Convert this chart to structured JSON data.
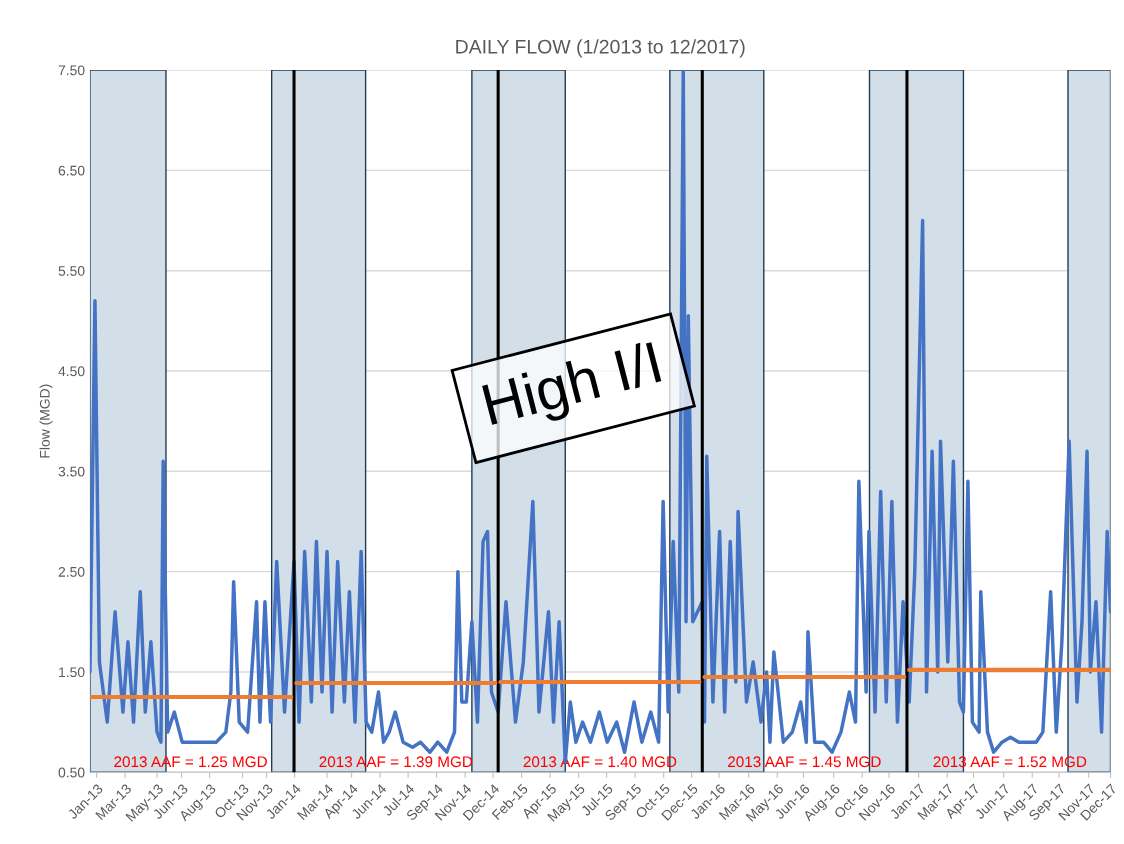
{
  "chart_data": {
    "type": "line",
    "title": "DAILY FLOW (1/2013 to 12/2017)",
    "ylabel": "Flow (MGD)",
    "xlim": [
      "2013-01-01",
      "2017-12-31"
    ],
    "ylim": [
      0.5,
      7.5
    ],
    "yticks": [
      {
        "value": 0.5,
        "label": "0.50"
      },
      {
        "value": 1.5,
        "label": "1.50"
      },
      {
        "value": 2.5,
        "label": "2.50"
      },
      {
        "value": 3.5,
        "label": "3.50"
      },
      {
        "value": 4.5,
        "label": "4.50"
      },
      {
        "value": 5.5,
        "label": "5.50"
      },
      {
        "value": 6.5,
        "label": "6.50"
      },
      {
        "value": 7.5,
        "label": "7.50"
      }
    ],
    "xticks": [
      {
        "value": "2013-01-13",
        "label": "Jan-13"
      },
      {
        "value": "2013-03-05",
        "label": "Mar-13"
      },
      {
        "value": "2013-05-01",
        "label": "May-13"
      },
      {
        "value": "2013-06-14",
        "label": "Jun-13"
      },
      {
        "value": "2013-08-03",
        "label": "Aug-13"
      },
      {
        "value": "2013-10-01",
        "label": "Oct-13"
      },
      {
        "value": "2013-11-13",
        "label": "Nov-13"
      },
      {
        "value": "2014-01-02",
        "label": "Jan-14"
      },
      {
        "value": "2014-03-01",
        "label": "Mar-14"
      },
      {
        "value": "2014-04-14",
        "label": "Apr-14"
      },
      {
        "value": "2014-06-04",
        "label": "Jun-14"
      },
      {
        "value": "2014-07-24",
        "label": "Jul-14"
      },
      {
        "value": "2014-09-13",
        "label": "Sep-14"
      },
      {
        "value": "2014-11-03",
        "label": "Nov-14"
      },
      {
        "value": "2014-12-23",
        "label": "Dec-14"
      },
      {
        "value": "2015-02-12",
        "label": "Feb-15"
      },
      {
        "value": "2015-04-04",
        "label": "Apr-15"
      },
      {
        "value": "2015-05-25",
        "label": "May-15"
      },
      {
        "value": "2015-07-14",
        "label": "Jul-15"
      },
      {
        "value": "2015-09-03",
        "label": "Sep-15"
      },
      {
        "value": "2015-10-24",
        "label": "Oct-15"
      },
      {
        "value": "2015-12-13",
        "label": "Dec-15"
      },
      {
        "value": "2016-01-31",
        "label": "Jan-16"
      },
      {
        "value": "2016-03-24",
        "label": "Mar-16"
      },
      {
        "value": "2016-05-14",
        "label": "May-16"
      },
      {
        "value": "2016-06-30",
        "label": "Jun-16"
      },
      {
        "value": "2016-08-23",
        "label": "Aug-16"
      },
      {
        "value": "2016-10-13",
        "label": "Oct-16"
      },
      {
        "value": "2016-11-30",
        "label": "Nov-16"
      },
      {
        "value": "2017-01-22",
        "label": "Jan-17"
      },
      {
        "value": "2017-03-14",
        "label": "Mar-17"
      },
      {
        "value": "2017-04-30",
        "label": "Apr-17"
      },
      {
        "value": "2017-06-23",
        "label": "Jun-17"
      },
      {
        "value": "2017-08-13",
        "label": "Aug-17"
      },
      {
        "value": "2017-09-30",
        "label": "Sep-17"
      },
      {
        "value": "2017-11-22",
        "label": "Nov-17"
      },
      {
        "value": "2017-12-31",
        "label": "Dec-17"
      }
    ],
    "grid": "y",
    "legend": false,
    "marker": "none",
    "line_style": "solid",
    "bands": [
      {
        "axis": "x",
        "from": "2013-01-01",
        "to": "2013-05-17",
        "color": "#d3dfe8"
      },
      {
        "axis": "x",
        "from": "2013-11-22",
        "to": "2014-05-09",
        "color": "#d3dfe8"
      },
      {
        "axis": "x",
        "from": "2014-11-15",
        "to": "2015-05-01",
        "color": "#d3dfe8"
      },
      {
        "axis": "x",
        "from": "2015-11-04",
        "to": "2016-04-20",
        "color": "#d3dfe8"
      },
      {
        "axis": "x",
        "from": "2016-10-26",
        "to": "2017-04-12",
        "color": "#d3dfe8"
      },
      {
        "axis": "x",
        "from": "2017-10-16",
        "to": "2017-12-31",
        "color": "#d3dfe8"
      }
    ],
    "ref_lines": [
      {
        "axis": "x",
        "value": "2014-01-01",
        "color": "#000000"
      },
      {
        "axis": "x",
        "value": "2015-01-01",
        "color": "#000000"
      },
      {
        "axis": "x",
        "value": "2016-01-01",
        "color": "#000000"
      },
      {
        "axis": "x",
        "value": "2017-01-01",
        "color": "#000000"
      }
    ],
    "series": [
      {
        "color": "#4472c4",
        "x": [
          "2013-01-01",
          "2013-01-10",
          "2013-01-18",
          "2013-02-01",
          "2013-02-15",
          "2013-03-01",
          "2013-03-10",
          "2013-03-20",
          "2013-04-01",
          "2013-04-10",
          "2013-04-20",
          "2013-05-01",
          "2013-05-08",
          "2013-05-12",
          "2013-05-20",
          "2013-06-01",
          "2013-06-15",
          "2013-07-01",
          "2013-07-15",
          "2013-08-01",
          "2013-08-15",
          "2013-09-01",
          "2013-09-10",
          "2013-09-15",
          "2013-09-25",
          "2013-10-10",
          "2013-10-26",
          "2013-11-01",
          "2013-11-10",
          "2013-11-20",
          "2013-12-01",
          "2013-12-15",
          "2014-01-01",
          "2014-01-10",
          "2014-01-20",
          "2014-02-01",
          "2014-02-10",
          "2014-02-20",
          "2014-03-01",
          "2014-03-10",
          "2014-03-20",
          "2014-04-01",
          "2014-04-10",
          "2014-04-20",
          "2014-05-01",
          "2014-05-10",
          "2014-05-20",
          "2014-06-01",
          "2014-06-10",
          "2014-06-20",
          "2014-07-01",
          "2014-07-15",
          "2014-08-01",
          "2014-08-15",
          "2014-09-01",
          "2014-09-15",
          "2014-10-01",
          "2014-10-15",
          "2014-10-21",
          "2014-10-28",
          "2014-11-05",
          "2014-11-15",
          "2014-11-25",
          "2014-12-05",
          "2014-12-13",
          "2014-12-20",
          "2015-01-01",
          "2015-01-15",
          "2015-02-01",
          "2015-02-15",
          "2015-03-04",
          "2015-03-15",
          "2015-04-01",
          "2015-04-10",
          "2015-04-20",
          "2015-05-01",
          "2015-05-10",
          "2015-05-20",
          "2015-06-01",
          "2015-06-15",
          "2015-07-01",
          "2015-07-15",
          "2015-08-01",
          "2015-08-15",
          "2015-09-01",
          "2015-09-15",
          "2015-10-01",
          "2015-10-15",
          "2015-10-23",
          "2015-11-01",
          "2015-11-10",
          "2015-11-20",
          "2015-11-28",
          "2015-12-03",
          "2015-12-07",
          "2015-12-15",
          "2016-01-01",
          "2016-01-05",
          "2016-01-09",
          "2016-01-20",
          "2016-02-01",
          "2016-02-10",
          "2016-02-20",
          "2016-03-01",
          "2016-03-05",
          "2016-03-20",
          "2016-04-01",
          "2016-04-15",
          "2016-04-25",
          "2016-05-01",
          "2016-05-08",
          "2016-05-25",
          "2016-06-10",
          "2016-06-25",
          "2016-07-05",
          "2016-07-08",
          "2016-07-20",
          "2016-08-05",
          "2016-08-20",
          "2016-09-05",
          "2016-09-20",
          "2016-10-01",
          "2016-10-07",
          "2016-10-20",
          "2016-10-25",
          "2016-11-05",
          "2016-11-15",
          "2016-11-25",
          "2016-12-05",
          "2016-12-15",
          "2016-12-25",
          "2017-01-05",
          "2017-01-15",
          "2017-01-29",
          "2017-02-05",
          "2017-02-15",
          "2017-02-25",
          "2017-03-02",
          "2017-03-15",
          "2017-03-25",
          "2017-04-05",
          "2017-04-12",
          "2017-04-20",
          "2017-04-28",
          "2017-05-10",
          "2017-05-13",
          "2017-05-25",
          "2017-06-05",
          "2017-06-20",
          "2017-07-05",
          "2017-07-20",
          "2017-08-05",
          "2017-08-20",
          "2017-09-01",
          "2017-09-15",
          "2017-09-25",
          "2017-10-05",
          "2017-10-18",
          "2017-11-01",
          "2017-11-10",
          "2017-11-19",
          "2017-11-25",
          "2017-12-05",
          "2017-12-15",
          "2017-12-25",
          "2017-12-31"
        ],
        "values": [
          1.5,
          5.2,
          1.6,
          1.0,
          2.1,
          1.1,
          1.8,
          1.0,
          2.3,
          1.1,
          1.8,
          0.9,
          0.8,
          3.6,
          0.9,
          1.1,
          0.8,
          0.8,
          0.8,
          0.8,
          0.8,
          0.9,
          1.3,
          2.4,
          1.0,
          0.9,
          2.2,
          1.0,
          2.2,
          1.0,
          2.6,
          1.1,
          2.6,
          1.0,
          2.7,
          1.2,
          2.8,
          1.3,
          2.7,
          1.1,
          2.6,
          1.2,
          2.3,
          1.0,
          2.7,
          1.0,
          0.9,
          1.3,
          0.8,
          0.9,
          1.1,
          0.8,
          0.75,
          0.8,
          0.7,
          0.8,
          0.7,
          0.9,
          2.5,
          1.2,
          1.2,
          2.0,
          1.0,
          2.8,
          2.9,
          1.3,
          1.1,
          2.2,
          1.0,
          1.6,
          3.2,
          1.1,
          2.1,
          1.0,
          2.0,
          0.6,
          1.2,
          0.8,
          1.0,
          0.8,
          1.1,
          0.8,
          1.0,
          0.7,
          1.2,
          0.8,
          1.1,
          0.8,
          3.2,
          1.1,
          2.8,
          1.3,
          7.5,
          2.0,
          5.05,
          2.0,
          2.2,
          1.0,
          3.65,
          1.2,
          2.9,
          1.1,
          2.8,
          1.4,
          3.1,
          1.2,
          1.6,
          1.0,
          1.5,
          0.8,
          1.7,
          0.8,
          0.9,
          1.2,
          0.8,
          1.9,
          0.8,
          0.8,
          0.7,
          0.9,
          1.3,
          1.0,
          3.4,
          1.3,
          2.9,
          1.1,
          3.3,
          1.2,
          3.2,
          1.0,
          2.2,
          1.2,
          2.5,
          6.0,
          1.3,
          3.7,
          1.5,
          3.8,
          1.6,
          3.6,
          1.2,
          1.1,
          3.4,
          1.0,
          0.9,
          2.3,
          0.9,
          0.7,
          0.8,
          0.85,
          0.8,
          0.8,
          0.8,
          0.9,
          2.3,
          0.9,
          1.8,
          3.8,
          1.2,
          2.0,
          3.7,
          1.5,
          2.2,
          0.9,
          2.9,
          2.1
        ]
      },
      {
        "color": "#ed7d31",
        "x": [
          "2013-01-01",
          "2013-12-27"
        ],
        "values": [
          1.25,
          1.25
        ]
      },
      {
        "color": "#ed7d31",
        "x": [
          "2014-01-05",
          "2014-12-27"
        ],
        "values": [
          1.39,
          1.39
        ]
      },
      {
        "color": "#ed7d31",
        "x": [
          "2015-01-05",
          "2015-12-27"
        ],
        "values": [
          1.4,
          1.4
        ]
      },
      {
        "color": "#ed7d31",
        "x": [
          "2016-01-05",
          "2016-12-27"
        ],
        "values": [
          1.45,
          1.45
        ]
      },
      {
        "color": "#ed7d31",
        "x": [
          "2017-01-05",
          "2017-12-31"
        ],
        "values": [
          1.52,
          1.52
        ]
      }
    ],
    "annotations": [
      "2013 AAF = 1.25 MGD",
      "2013 AAF = 1.39 MGD",
      "2013 AAF = 1.40 MGD",
      "2013 AAF = 1.45 MGD",
      "2013 AAF = 1.52 MGD",
      "High I/I"
    ]
  }
}
